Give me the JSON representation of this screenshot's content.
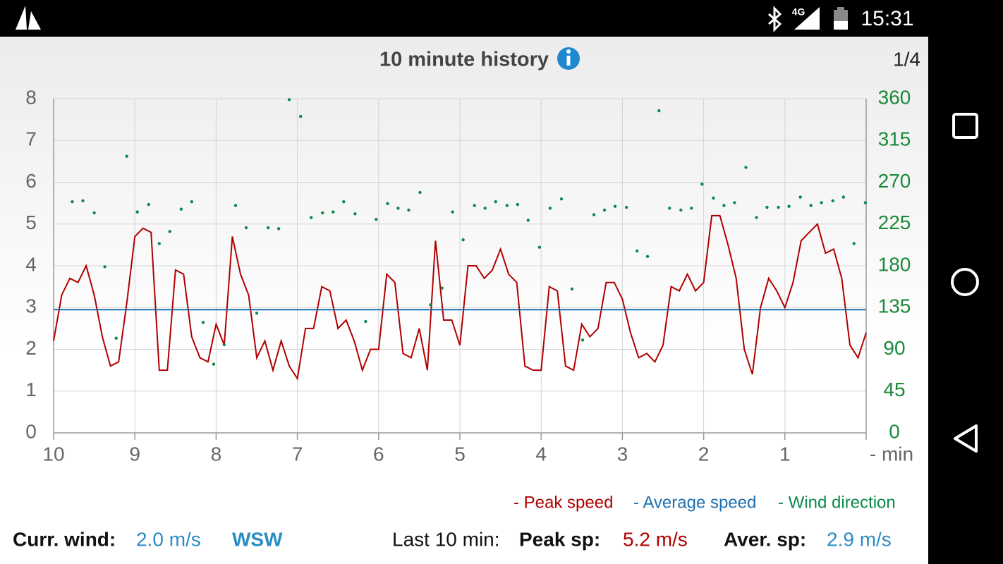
{
  "status_bar": {
    "network": "4G",
    "time": "15:31"
  },
  "header": {
    "title": "10 minute history",
    "page": "1/4"
  },
  "chart_data": {
    "type": "line",
    "xlim": [
      10,
      0
    ],
    "xticks": [
      10,
      9,
      8,
      7,
      6,
      5,
      4,
      3,
      2,
      1,
      {
        "value": 0,
        "label": "- min"
      }
    ],
    "ylim": [
      0,
      8
    ],
    "yticks": [
      0,
      1,
      2,
      3,
      4,
      5,
      6,
      7,
      8
    ],
    "y2lim": [
      0,
      360
    ],
    "y2ticks": [
      0,
      45,
      90,
      135,
      180,
      225,
      270,
      315,
      360
    ],
    "grid": true,
    "series": [
      {
        "name": "- Peak speed",
        "color": "#b00000",
        "style": "line",
        "x": [
          10.0,
          9.9,
          9.8,
          9.7,
          9.6,
          9.5,
          9.4,
          9.3,
          9.2,
          9.1,
          9.0,
          8.9,
          8.8,
          8.7,
          8.6,
          8.5,
          8.4,
          8.3,
          8.2,
          8.1,
          8.0,
          7.9,
          7.8,
          7.7,
          7.6,
          7.5,
          7.4,
          7.3,
          7.2,
          7.1,
          7.0,
          6.9,
          6.8,
          6.7,
          6.6,
          6.5,
          6.4,
          6.3,
          6.2,
          6.1,
          6.0,
          5.9,
          5.8,
          5.7,
          5.6,
          5.5,
          5.4,
          5.3,
          5.2,
          5.1,
          5.0,
          4.9,
          4.8,
          4.7,
          4.6,
          4.5,
          4.4,
          4.3,
          4.2,
          4.1,
          4.0,
          3.9,
          3.8,
          3.7,
          3.6,
          3.5,
          3.4,
          3.3,
          3.2,
          3.1,
          3.0,
          2.9,
          2.8,
          2.7,
          2.6,
          2.5,
          2.4,
          2.3,
          2.2,
          2.1,
          2.0,
          1.9,
          1.8,
          1.7,
          1.6,
          1.5,
          1.4,
          1.3,
          1.2,
          1.1,
          1.0,
          0.9,
          0.8,
          0.7,
          0.6,
          0.5,
          0.4,
          0.3,
          0.2,
          0.1,
          0.0
        ],
        "values": [
          2.2,
          3.3,
          3.7,
          3.6,
          4.0,
          3.3,
          2.3,
          1.6,
          1.7,
          3.1,
          4.7,
          4.9,
          4.8,
          1.5,
          1.5,
          3.9,
          3.8,
          2.3,
          1.8,
          1.7,
          2.6,
          2.1,
          4.7,
          3.8,
          3.3,
          1.8,
          2.2,
          1.5,
          2.2,
          1.6,
          1.3,
          2.5,
          2.5,
          3.5,
          3.4,
          2.5,
          2.7,
          2.2,
          1.5,
          2.0,
          2.0,
          3.8,
          3.6,
          1.9,
          1.8,
          2.5,
          1.5,
          4.6,
          2.7,
          2.7,
          2.1,
          4.0,
          4.0,
          3.7,
          3.9,
          4.4,
          3.8,
          3.6,
          1.6,
          1.5,
          1.5,
          3.5,
          3.4,
          1.6,
          1.5,
          2.6,
          2.3,
          2.5,
          3.6,
          3.6,
          3.2,
          2.4,
          1.8,
          1.9,
          1.7,
          2.1,
          3.5,
          3.4,
          3.8,
          3.4,
          3.6,
          5.2,
          5.2,
          4.5,
          3.7,
          2.0,
          1.4,
          3.0,
          3.7,
          3.4,
          3.0,
          3.6,
          4.6,
          4.8,
          5.0,
          4.3,
          4.4,
          3.7,
          2.1,
          1.8,
          2.4
        ]
      },
      {
        "name": "- Average speed",
        "color": "#1f6fae",
        "style": "line",
        "x": [
          10,
          0
        ],
        "values": [
          2.95,
          2.95
        ]
      },
      {
        "name": "- Wind direction",
        "color": "#0c8a4c",
        "style": "dots",
        "axis": "y2",
        "x": [
          9.77,
          9.64,
          9.5,
          9.37,
          9.23,
          9.1,
          8.97,
          8.83,
          8.7,
          8.57,
          8.43,
          8.3,
          8.16,
          8.03,
          7.9,
          7.76,
          7.63,
          7.5,
          7.36,
          7.23,
          7.1,
          6.96,
          6.83,
          6.69,
          6.56,
          6.43,
          6.29,
          6.16,
          6.03,
          5.89,
          5.76,
          5.63,
          5.49,
          5.36,
          5.22,
          5.09,
          4.96,
          4.82,
          4.69,
          4.56,
          4.42,
          4.29,
          4.16,
          4.02,
          3.89,
          3.75,
          3.62,
          3.49,
          3.35,
          3.22,
          3.09,
          2.95,
          2.82,
          2.69,
          2.55,
          2.42,
          2.28,
          2.15,
          2.02,
          1.88,
          1.75,
          1.62,
          1.48,
          1.35,
          1.22,
          1.08,
          0.95,
          0.81,
          0.68,
          0.55,
          0.41,
          0.28,
          0.15,
          0.01
        ],
        "values": [
          249,
          250,
          237,
          179,
          102,
          298,
          238,
          246,
          204,
          217,
          241,
          249,
          119,
          74,
          95,
          245,
          221,
          129,
          221,
          220,
          359,
          341,
          232,
          237,
          238,
          249,
          236,
          120,
          230,
          247,
          242,
          240,
          259,
          138,
          156,
          238,
          208,
          245,
          242,
          249,
          245,
          246,
          229,
          200,
          242,
          252,
          155,
          100,
          235,
          240,
          244,
          243,
          196,
          190,
          347,
          242,
          240,
          242,
          268,
          253,
          245,
          248,
          286,
          232,
          243,
          243,
          244,
          254,
          245,
          248,
          250,
          254,
          204,
          248
        ]
      }
    ]
  },
  "footer": {
    "current_label": "Curr. wind:",
    "current_speed": "2.0 m/s",
    "current_direction": "WSW",
    "period_label": "Last 10 min:",
    "peak_label": "Peak sp:",
    "peak_value": "5.2 m/s",
    "average_label": "Aver. sp:",
    "average_value": "2.9 m/s"
  }
}
